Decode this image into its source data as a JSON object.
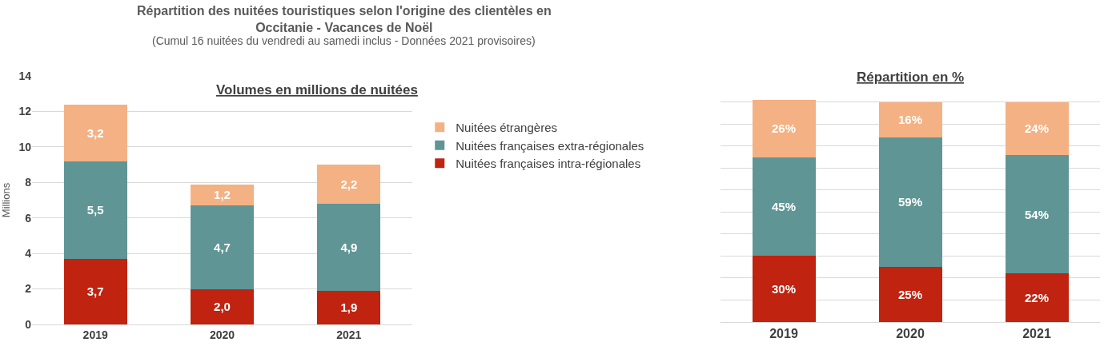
{
  "chart_data": [
    {
      "type": "bar",
      "title": "Répartition des nuitées touristiques selon l'origine des clientèles en Occitanie - Vacances de Noël",
      "subtitle": "(Cumul 16 nuitées du vendredi au samedi inclus - Données 2021 provisoires)",
      "annotations": [
        "Volumes en millions de nuitées"
      ],
      "ylabel": "Millions",
      "categories": [
        "2019",
        "2020",
        "2021"
      ],
      "stacked": true,
      "ylim": [
        0,
        14
      ],
      "yticks": [
        0,
        2,
        4,
        6,
        8,
        10,
        12,
        14
      ],
      "grid": "y",
      "legend": "right",
      "series": [
        {
          "name": "Nuitées françaises intra-régionales",
          "color": "#c0230f",
          "values": [
            3.7,
            2.0,
            1.9
          ],
          "value_labels": [
            "3,7",
            "2,0",
            "1,9"
          ]
        },
        {
          "name": "Nuitées françaises extra-régionales",
          "color": "#5f9595",
          "values": [
            5.5,
            4.7,
            4.9
          ],
          "value_labels": [
            "5,5",
            "4,7",
            "4,9"
          ]
        },
        {
          "name": "Nuitées étrangères",
          "color": "#f4b183",
          "values": [
            3.2,
            1.2,
            2.2
          ],
          "value_labels": [
            "3,2",
            "1,2",
            "2,2"
          ]
        }
      ]
    },
    {
      "type": "bar",
      "title": "Répartition en %",
      "categories": [
        "2019",
        "2020",
        "2021"
      ],
      "stacked": true,
      "ylim": [
        0,
        101
      ],
      "yticks": [
        {
          "value": 0,
          "label": null
        },
        {
          "value": 10,
          "label": null
        },
        {
          "value": 20,
          "label": null
        },
        {
          "value": 30,
          "label": null
        },
        {
          "value": 40,
          "label": null
        },
        {
          "value": 50,
          "label": null
        },
        {
          "value": 60,
          "label": null
        },
        {
          "value": 70,
          "label": null
        },
        {
          "value": 80,
          "label": null
        },
        {
          "value": 90,
          "label": null
        },
        {
          "value": 100,
          "label": null
        }
      ],
      "grid": "y",
      "tick_labels": "x",
      "series": [
        {
          "color": "#c0230f",
          "values": [
            30,
            25,
            22
          ],
          "value_labels": [
            "30%",
            "25%",
            "22%"
          ]
        },
        {
          "color": "#5f9595",
          "values": [
            45,
            59,
            54
          ],
          "value_labels": [
            "45%",
            "59%",
            "54%"
          ]
        },
        {
          "color": "#f4b183",
          "values": [
            26,
            16,
            24
          ],
          "value_labels": [
            "26%",
            "16%",
            "24%"
          ]
        }
      ]
    }
  ]
}
